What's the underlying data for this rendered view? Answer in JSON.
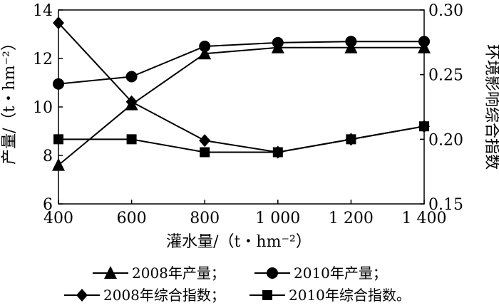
{
  "chart_data": {
    "type": "line",
    "x": [
      400,
      600,
      800,
      1000,
      1200,
      1400
    ],
    "xlabel": "灌水量/（t・hm⁻²）",
    "xtick_labels": [
      "400",
      "600",
      "800",
      "1 000",
      "1 200",
      "1 400"
    ],
    "xlim": [
      400,
      1400
    ],
    "ylabel_left": "产量/（t・hm⁻²）",
    "ylim_left": [
      6,
      14
    ],
    "yticks_left": [
      "6",
      "8",
      "10",
      "12",
      "14"
    ],
    "ylabel_right": "环境影响综合指数",
    "ylim_right": [
      0.15,
      0.3
    ],
    "yticks_right": [
      "0.15",
      "0.20",
      "0.25",
      "0.30"
    ],
    "grid": false,
    "legend_position": "bottom",
    "series": [
      {
        "name": "2008年产量；",
        "axis": "left",
        "marker": "triangle",
        "values": [
          7.6,
          10.1,
          12.2,
          12.45,
          12.45,
          12.45
        ]
      },
      {
        "name": "2010年产量；",
        "axis": "left",
        "marker": "circle",
        "values": [
          10.95,
          11.25,
          12.5,
          12.65,
          12.7,
          12.7
        ]
      },
      {
        "name": "2008年综合指数；",
        "axis": "right",
        "marker": "diamond",
        "values": [
          0.29,
          0.229,
          0.199,
          0.19,
          0.2,
          0.21
        ]
      },
      {
        "name": "2010年综合指数。",
        "axis": "right",
        "marker": "square",
        "values": [
          0.2,
          0.2,
          0.19,
          0.19,
          0.2,
          0.21
        ]
      }
    ]
  }
}
